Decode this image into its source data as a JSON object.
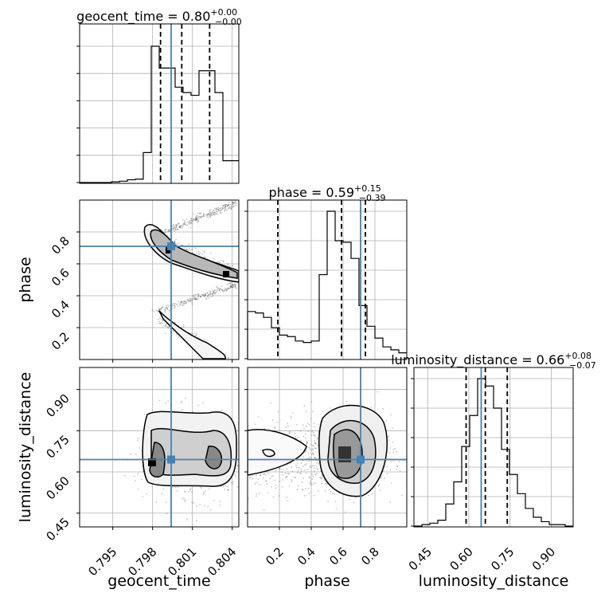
{
  "chart_data": {
    "type": "corner",
    "grid": true,
    "parameters": [
      "geocent_time",
      "phase",
      "luminosity_distance"
    ],
    "truth": {
      "geocent_time": 0.7994,
      "phase": 0.71,
      "luminosity_distance": 0.645,
      "color": "#4682b4"
    },
    "colors": {
      "hist": "#000000",
      "truth": "#4682b4",
      "grid": "#b0b0b0",
      "sample": "#555555"
    },
    "diagonal": [
      {
        "parameter": "geocent_time",
        "title": "geocent_time = 0.80",
        "title_main": "geocent_time = 0.80",
        "title_sup": "+0.00",
        "title_sub": "−0.00",
        "range": [
          0.7925,
          0.8045
        ],
        "ticks": [
          0.795,
          0.798,
          0.801,
          0.804
        ],
        "tick_labels": [
          "0.795",
          "0.798",
          "0.801",
          "0.804"
        ],
        "xlabel": "geocent_time",
        "quantiles": [
          0.7986,
          0.8002,
          0.8023
        ],
        "hist_edges": [
          0.7925,
          0.7931,
          0.7937,
          0.7943,
          0.7949,
          0.7955,
          0.7961,
          0.7967,
          0.7973,
          0.7979,
          0.7985,
          0.7991,
          0.7997,
          0.8003,
          0.8009,
          0.8015,
          0.8021,
          0.8027,
          0.8033,
          0.8039,
          0.8045
        ],
        "hist_counts": [
          0,
          0,
          0,
          0,
          0.5,
          1,
          2,
          2.5,
          22,
          100,
          84,
          84,
          70,
          66,
          64,
          82,
          82,
          66,
          16,
          16
        ]
      },
      {
        "parameter": "phase",
        "title": "phase = 0.59",
        "title_main": "phase = 0.59",
        "title_sup": "+0.15",
        "title_sub": "−0.39",
        "range": [
          0.0,
          1.0
        ],
        "ticks": [
          0.2,
          0.4,
          0.6,
          0.8
        ],
        "tick_labels": [
          "0.2",
          "0.4",
          "0.6",
          "0.8"
        ],
        "xlabel": "phase",
        "quantiles": [
          0.19,
          0.59,
          0.74
        ],
        "hist_edges": [
          0.0,
          0.05,
          0.1,
          0.15,
          0.2,
          0.25,
          0.3,
          0.35,
          0.4,
          0.45,
          0.5,
          0.55,
          0.6,
          0.65,
          0.7,
          0.75,
          0.8,
          0.85,
          0.9,
          0.95,
          1.0
        ],
        "hist_counts": [
          32,
          31,
          28,
          21,
          16,
          15,
          12,
          11,
          12,
          57,
          100,
          80,
          79,
          68,
          36,
          22,
          14,
          8,
          6,
          4
        ]
      },
      {
        "parameter": "luminosity_distance",
        "title": "luminosity_distance = 0.66",
        "title_main": "luminosity_distance = 0.66",
        "title_sup": "+0.08",
        "title_sub": "−0.07",
        "range": [
          0.4,
          0.98
        ],
        "ticks": [
          0.45,
          0.6,
          0.75,
          0.9
        ],
        "tick_labels": [
          "0.45",
          "0.60",
          "0.75",
          "0.90"
        ],
        "xlabel": "luminosity_distance",
        "quantiles": [
          0.59,
          0.66,
          0.74
        ],
        "hist_edges": [
          0.4,
          0.429,
          0.458,
          0.487,
          0.516,
          0.545,
          0.574,
          0.603,
          0.632,
          0.661,
          0.69,
          0.719,
          0.748,
          0.777,
          0.806,
          0.835,
          0.864,
          0.893,
          0.922,
          0.951,
          0.98
        ],
        "hist_counts": [
          0,
          1,
          2,
          4,
          15,
          30,
          54,
          75,
          100,
          95,
          80,
          52,
          35,
          22,
          12,
          6,
          3,
          1,
          1,
          0
        ]
      }
    ],
    "off_diagonal": [
      {
        "x": "geocent_time",
        "y": "phase",
        "ylabel": "phase",
        "yticks": [
          0.2,
          0.4,
          0.6,
          0.8
        ],
        "ytick_labels": [
          "0.2",
          "0.4",
          "0.6",
          "0.8"
        ]
      },
      {
        "x": "geocent_time",
        "y": "luminosity_distance",
        "ylabel": "luminosity_distance",
        "yticks": [
          0.45,
          0.6,
          0.75,
          0.9
        ],
        "ytick_labels": [
          "0.45",
          "0.60",
          "0.75",
          "0.90"
        ]
      },
      {
        "x": "phase",
        "y": "luminosity_distance"
      }
    ]
  }
}
